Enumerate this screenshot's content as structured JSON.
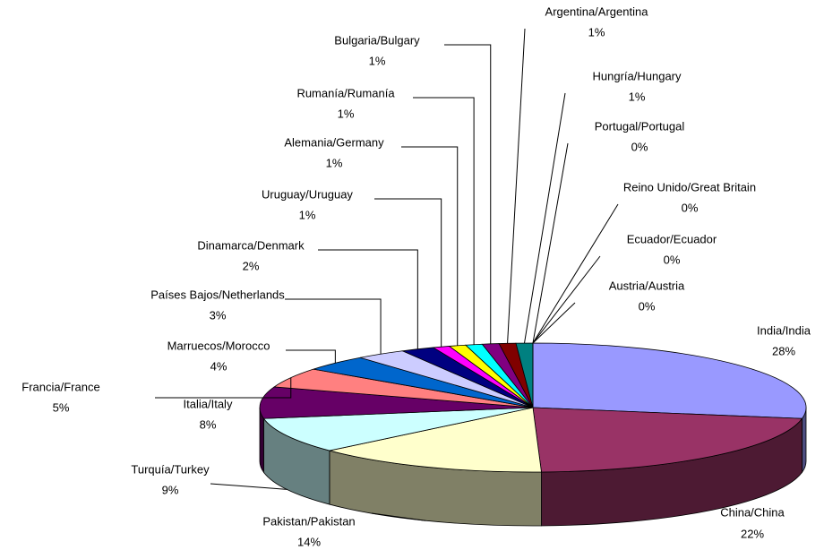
{
  "chart_data": {
    "type": "pie",
    "categories": [
      "India/India",
      "China/China",
      "Pakistan/Pakistan",
      "Turquía/Turkey",
      "Italia/Italy",
      "Francia/France",
      "Marruecos/Morocco",
      "Países Bajos/Netherlands",
      "Dinamarca/Denmark",
      "Uruguay/Uruguay",
      "Alemania/Germany",
      "Rumanía/Rumanía",
      "Bulgaria/Bulgary",
      "Argentina/Argentina",
      "Hungría/Hungary",
      "Portugal/Portugal",
      "Reino Unido/Great Britain",
      "Ecuador/Ecuador",
      "Austria/Austria"
    ],
    "values": [
      28,
      22,
      14,
      9,
      8,
      5,
      4,
      3,
      2,
      1,
      1,
      1,
      1,
      1,
      1,
      0,
      0,
      0,
      0
    ],
    "value_labels": [
      "28%",
      "22%",
      "14%",
      "9%",
      "8%",
      "5%",
      "4%",
      "3%",
      "2%",
      "1%",
      "1%",
      "1%",
      "1%",
      "1%",
      "1%",
      "0%",
      "0%",
      "0%",
      "0%"
    ],
    "colors": [
      "#9999ff",
      "#993366",
      "#ffffcc",
      "#ccffff",
      "#660066",
      "#ff8080",
      "#0066cc",
      "#ccccff",
      "#000080",
      "#ff00ff",
      "#ffff00",
      "#00ffff",
      "#800080",
      "#800000",
      "#008080",
      "#0000ff",
      "#00ccff",
      "#ccffcc",
      "#ffff99"
    ]
  }
}
